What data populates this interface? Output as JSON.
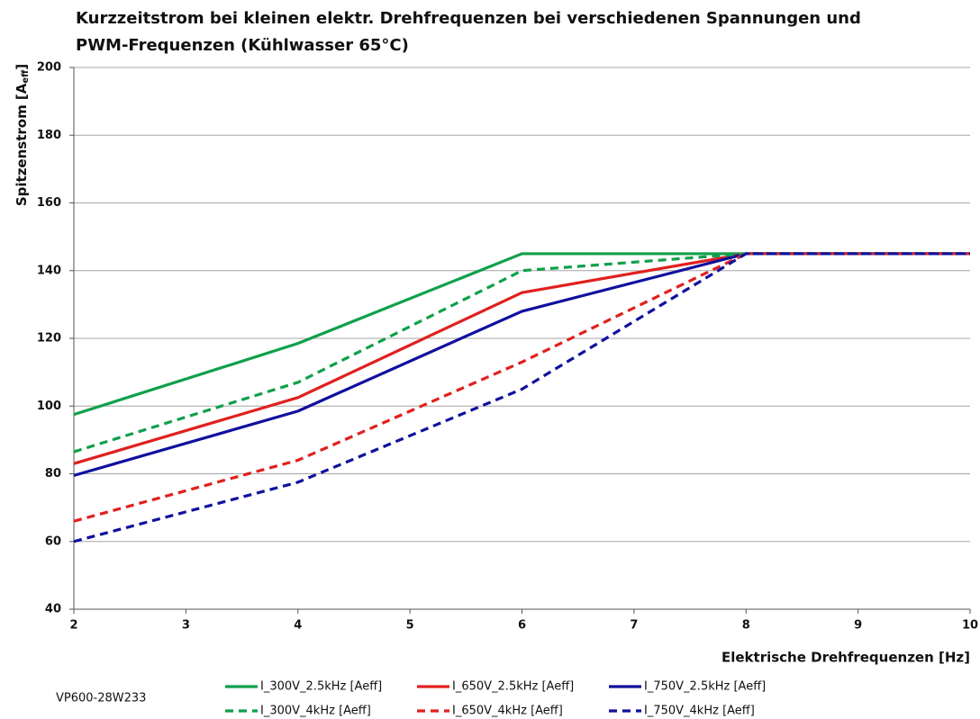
{
  "chart_data": {
    "type": "line",
    "title": "Kurzzeitstrom bei kleinen elektr. Drehfrequenzen bei verschiedenen Spannungen und PWM-Frequenzen (Kühlwasser 65°C)",
    "y_label": {
      "text": "Spitzenstrom [A",
      "sub": "eff",
      "end": "]"
    },
    "x_label": "Elektrische Drehfrequenzen [Hz]",
    "footnote": "VP600-28W233",
    "x": [
      2,
      4,
      6,
      8,
      10
    ],
    "xlim": [
      2,
      10
    ],
    "xticks": [
      2,
      3,
      4,
      5,
      6,
      7,
      8,
      9,
      10
    ],
    "ylim": [
      40,
      200
    ],
    "yticks": [
      40,
      60,
      80,
      100,
      120,
      140,
      160,
      180,
      200
    ],
    "grid": true,
    "legend": "bottom",
    "series": [
      {
        "name": "I_300V_2.5kHz [Aeff]",
        "color": "#0fa04a",
        "dash": false,
        "values": [
          97.5,
          118.5,
          145,
          145,
          145
        ]
      },
      {
        "name": "I_650V_2.5kHz [Aeff]",
        "color": "#e0201e",
        "dash": false,
        "values": [
          83,
          102.5,
          133.5,
          145,
          145
        ]
      },
      {
        "name": "I_750V_2.5kHz [Aeff]",
        "color": "#10109e",
        "dash": false,
        "values": [
          79.5,
          98.5,
          128,
          145,
          145
        ]
      },
      {
        "name": "I_300V_4kHz [Aeff]",
        "color": "#0fa04a",
        "dash": true,
        "values": [
          86.5,
          107,
          140,
          145,
          145
        ]
      },
      {
        "name": "I_650V_4kHz [Aeff]",
        "color": "#e0201e",
        "dash": true,
        "values": [
          66,
          84,
          113,
          145,
          145
        ]
      },
      {
        "name": "I_750V_4kHz [Aeff]",
        "color": "#10109e",
        "dash": true,
        "values": [
          60,
          77.5,
          105,
          145,
          145
        ]
      }
    ]
  }
}
